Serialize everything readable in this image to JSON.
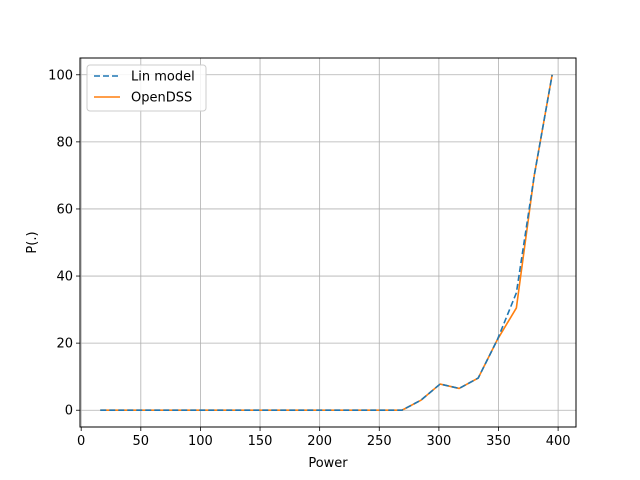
{
  "chart_data": {
    "type": "line",
    "title": "",
    "xlabel": "Power",
    "ylabel": "P(.)",
    "xlim": [
      -1,
      415
    ],
    "ylim": [
      -5,
      105
    ],
    "xticks": [
      0,
      50,
      100,
      150,
      200,
      250,
      300,
      350,
      400
    ],
    "yticks": [
      0,
      20,
      40,
      60,
      80,
      100
    ],
    "grid": true,
    "legend_position": "top-left",
    "series": [
      {
        "name": "Lin model",
        "style": "dashed",
        "color": "#1f77b4",
        "x": [
          16,
          32,
          48,
          64,
          80,
          96,
          112,
          128,
          144,
          160,
          176,
          192,
          208,
          224,
          240,
          256,
          269,
          285,
          301,
          317,
          333,
          349,
          357,
          365,
          380,
          395
        ],
        "y": [
          0,
          0,
          0,
          0,
          0,
          0,
          0,
          0,
          0,
          0,
          0,
          0,
          0,
          0,
          0,
          0,
          0,
          3,
          7.8,
          6.5,
          9.6,
          21,
          28,
          35,
          70,
          100
        ]
      },
      {
        "name": "OpenDSS",
        "style": "solid",
        "color": "#ff7f0e",
        "x": [
          16,
          32,
          48,
          64,
          80,
          96,
          112,
          128,
          144,
          160,
          176,
          192,
          208,
          224,
          240,
          256,
          269,
          285,
          301,
          317,
          333,
          349,
          365,
          380,
          395
        ],
        "y": [
          0,
          0,
          0,
          0,
          0,
          0,
          0,
          0,
          0,
          0,
          0,
          0,
          0,
          0,
          0,
          0,
          0,
          3,
          7.8,
          6.5,
          9.6,
          21,
          30.5,
          70,
          100
        ]
      }
    ]
  }
}
